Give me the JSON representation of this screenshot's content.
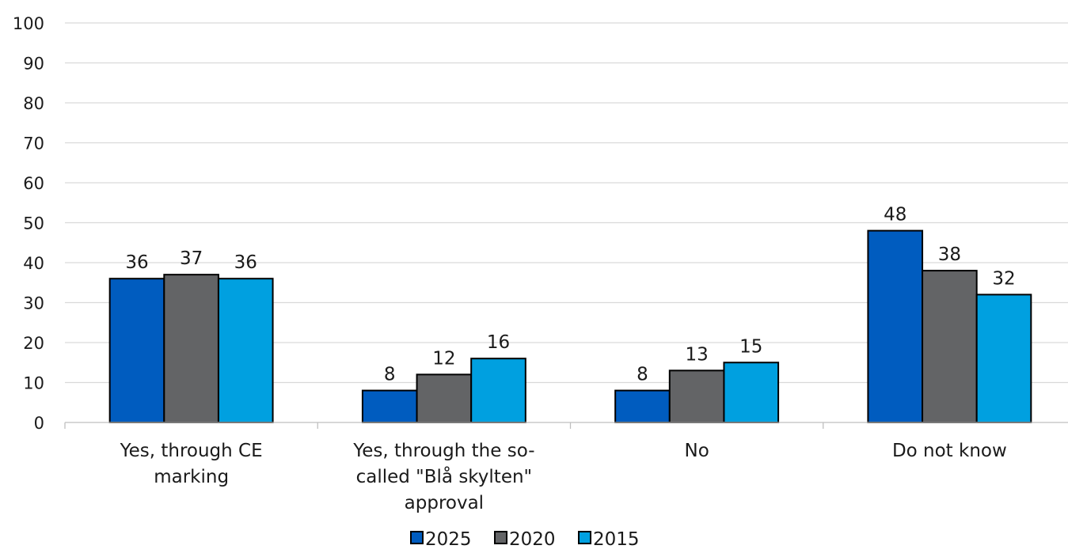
{
  "chart_data": {
    "type": "bar",
    "categories": [
      [
        "Yes, through CE",
        "marking"
      ],
      [
        "Yes, through the so-",
        "called \"Blå skylten\"",
        "approval"
      ],
      [
        "No"
      ],
      [
        "Do not know"
      ]
    ],
    "series": [
      {
        "name": "2025",
        "color": "#005cbf",
        "values": [
          36,
          8,
          8,
          48
        ]
      },
      {
        "name": "2020",
        "color": "#636466",
        "values": [
          37,
          12,
          13,
          38
        ]
      },
      {
        "name": "2015",
        "color": "#00a0e0",
        "values": [
          36,
          16,
          15,
          32
        ]
      }
    ],
    "ylim": [
      0,
      100
    ],
    "yticks": [
      0,
      10,
      20,
      30,
      40,
      50,
      60,
      70,
      80,
      90,
      100
    ],
    "grid": true,
    "legend": "bottom-center"
  }
}
